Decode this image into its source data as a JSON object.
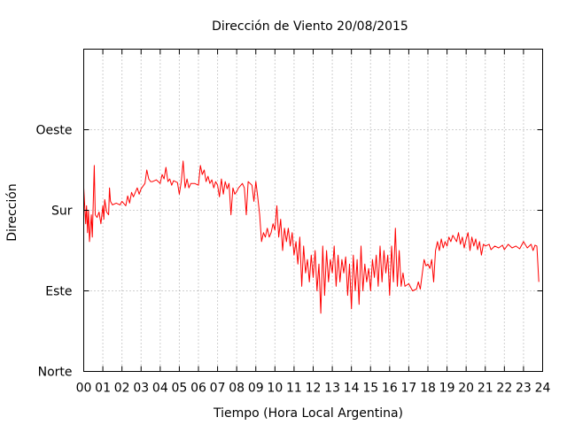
{
  "chart_data": {
    "type": "line",
    "title": "Dirección de Viento 20/08/2015",
    "xlabel": "Tiempo (Hora Local Argentina)",
    "ylabel": "Dirección",
    "xlim": [
      0,
      24
    ],
    "ylim": [
      0,
      360
    ],
    "x_ticks": [
      0,
      1,
      2,
      3,
      4,
      5,
      6,
      7,
      8,
      9,
      10,
      11,
      12,
      13,
      14,
      15,
      16,
      17,
      18,
      19,
      20,
      21,
      22,
      23,
      24
    ],
    "x_tick_labels": [
      "00",
      "01",
      "02",
      "03",
      "04",
      "05",
      "06",
      "07",
      "08",
      "09",
      "10",
      "11",
      "12",
      "13",
      "14",
      "15",
      "16",
      "17",
      "18",
      "19",
      "20",
      "21",
      "22",
      "23",
      "24"
    ],
    "y_ticks": [
      0,
      90,
      180,
      270
    ],
    "y_tick_labels": [
      "Norte",
      "Este",
      "Sur",
      "Oeste"
    ],
    "grid": true,
    "legend": "none",
    "series": [
      {
        "color": "#ff0000",
        "points": [
          [
            0.0,
            205
          ],
          [
            0.1,
            165
          ],
          [
            0.15,
            185
          ],
          [
            0.2,
            155
          ],
          [
            0.25,
            180
          ],
          [
            0.3,
            145
          ],
          [
            0.4,
            175
          ],
          [
            0.45,
            150
          ],
          [
            0.5,
            190
          ],
          [
            0.55,
            230
          ],
          [
            0.6,
            175
          ],
          [
            0.7,
            172
          ],
          [
            0.8,
            178
          ],
          [
            0.9,
            165
          ],
          [
            1.0,
            185
          ],
          [
            1.05,
            170
          ],
          [
            1.1,
            192
          ],
          [
            1.2,
            178
          ],
          [
            1.3,
            175
          ],
          [
            1.35,
            205
          ],
          [
            1.4,
            190
          ],
          [
            1.5,
            186
          ],
          [
            1.7,
            188
          ],
          [
            1.9,
            186
          ],
          [
            2.0,
            190
          ],
          [
            2.2,
            185
          ],
          [
            2.3,
            196
          ],
          [
            2.4,
            188
          ],
          [
            2.5,
            200
          ],
          [
            2.6,
            195
          ],
          [
            2.8,
            205
          ],
          [
            2.9,
            198
          ],
          [
            3.0,
            204
          ],
          [
            3.2,
            210
          ],
          [
            3.3,
            225
          ],
          [
            3.4,
            215
          ],
          [
            3.5,
            212
          ],
          [
            3.6,
            212
          ],
          [
            3.8,
            214
          ],
          [
            4.0,
            210
          ],
          [
            4.1,
            220
          ],
          [
            4.2,
            215
          ],
          [
            4.3,
            228
          ],
          [
            4.4,
            212
          ],
          [
            4.5,
            215
          ],
          [
            4.6,
            208
          ],
          [
            4.7,
            213
          ],
          [
            4.9,
            211
          ],
          [
            5.0,
            198
          ],
          [
            5.1,
            212
          ],
          [
            5.2,
            235
          ],
          [
            5.3,
            205
          ],
          [
            5.4,
            215
          ],
          [
            5.5,
            205
          ],
          [
            5.6,
            210
          ],
          [
            5.8,
            210
          ],
          [
            6.0,
            208
          ],
          [
            6.1,
            230
          ],
          [
            6.2,
            220
          ],
          [
            6.3,
            225
          ],
          [
            6.4,
            212
          ],
          [
            6.5,
            218
          ],
          [
            6.6,
            210
          ],
          [
            6.7,
            214
          ],
          [
            6.8,
            205
          ],
          [
            6.9,
            212
          ],
          [
            7.0,
            208
          ],
          [
            7.1,
            195
          ],
          [
            7.2,
            215
          ],
          [
            7.3,
            198
          ],
          [
            7.4,
            212
          ],
          [
            7.5,
            204
          ],
          [
            7.6,
            210
          ],
          [
            7.7,
            175
          ],
          [
            7.8,
            205
          ],
          [
            7.9,
            198
          ],
          [
            8.0,
            201
          ],
          [
            8.1,
            205
          ],
          [
            8.3,
            210
          ],
          [
            8.4,
            205
          ],
          [
            8.5,
            175
          ],
          [
            8.6,
            212
          ],
          [
            8.8,
            208
          ],
          [
            8.9,
            190
          ],
          [
            9.0,
            212
          ],
          [
            9.1,
            195
          ],
          [
            9.2,
            175
          ],
          [
            9.3,
            145
          ],
          [
            9.4,
            155
          ],
          [
            9.5,
            150
          ],
          [
            9.6,
            160
          ],
          [
            9.7,
            150
          ],
          [
            9.8,
            155
          ],
          [
            9.9,
            165
          ],
          [
            10.0,
            158
          ],
          [
            10.1,
            185
          ],
          [
            10.2,
            150
          ],
          [
            10.3,
            170
          ],
          [
            10.4,
            135
          ],
          [
            10.5,
            160
          ],
          [
            10.6,
            145
          ],
          [
            10.7,
            160
          ],
          [
            10.8,
            140
          ],
          [
            10.9,
            155
          ],
          [
            11.0,
            130
          ],
          [
            11.1,
            145
          ],
          [
            11.2,
            120
          ],
          [
            11.3,
            150
          ],
          [
            11.4,
            95
          ],
          [
            11.5,
            140
          ],
          [
            11.6,
            110
          ],
          [
            11.7,
            125
          ],
          [
            11.8,
            100
          ],
          [
            11.9,
            130
          ],
          [
            12.0,
            105
          ],
          [
            12.1,
            135
          ],
          [
            12.2,
            90
          ],
          [
            12.3,
            120
          ],
          [
            12.4,
            65
          ],
          [
            12.5,
            140
          ],
          [
            12.6,
            85
          ],
          [
            12.7,
            135
          ],
          [
            12.8,
            100
          ],
          [
            12.9,
            125
          ],
          [
            13.0,
            110
          ],
          [
            13.1,
            140
          ],
          [
            13.2,
            95
          ],
          [
            13.3,
            130
          ],
          [
            13.4,
            100
          ],
          [
            13.5,
            125
          ],
          [
            13.6,
            110
          ],
          [
            13.7,
            128
          ],
          [
            13.8,
            85
          ],
          [
            13.9,
            120
          ],
          [
            14.0,
            70
          ],
          [
            14.1,
            130
          ],
          [
            14.2,
            90
          ],
          [
            14.3,
            125
          ],
          [
            14.4,
            75
          ],
          [
            14.5,
            140
          ],
          [
            14.6,
            90
          ],
          [
            14.7,
            120
          ],
          [
            14.8,
            100
          ],
          [
            14.9,
            115
          ],
          [
            15.0,
            90
          ],
          [
            15.1,
            125
          ],
          [
            15.2,
            105
          ],
          [
            15.3,
            130
          ],
          [
            15.4,
            95
          ],
          [
            15.5,
            140
          ],
          [
            15.6,
            100
          ],
          [
            15.7,
            135
          ],
          [
            15.8,
            110
          ],
          [
            15.9,
            130
          ],
          [
            16.0,
            85
          ],
          [
            16.1,
            140
          ],
          [
            16.2,
            100
          ],
          [
            16.3,
            160
          ],
          [
            16.4,
            95
          ],
          [
            16.5,
            135
          ],
          [
            16.6,
            95
          ],
          [
            16.7,
            110
          ],
          [
            16.8,
            95
          ],
          [
            17.0,
            98
          ],
          [
            17.2,
            90
          ],
          [
            17.4,
            92
          ],
          [
            17.5,
            100
          ],
          [
            17.6,
            92
          ],
          [
            17.8,
            125
          ],
          [
            17.9,
            118
          ],
          [
            18.0,
            120
          ],
          [
            18.1,
            115
          ],
          [
            18.2,
            125
          ],
          [
            18.3,
            100
          ],
          [
            18.4,
            135
          ],
          [
            18.5,
            145
          ],
          [
            18.6,
            135
          ],
          [
            18.7,
            148
          ],
          [
            18.8,
            138
          ],
          [
            18.9,
            145
          ],
          [
            19.0,
            140
          ],
          [
            19.1,
            150
          ],
          [
            19.2,
            145
          ],
          [
            19.3,
            152
          ],
          [
            19.5,
            145
          ],
          [
            19.6,
            155
          ],
          [
            19.7,
            142
          ],
          [
            19.8,
            150
          ],
          [
            19.9,
            138
          ],
          [
            20.0,
            148
          ],
          [
            20.1,
            155
          ],
          [
            20.2,
            135
          ],
          [
            20.3,
            150
          ],
          [
            20.4,
            140
          ],
          [
            20.5,
            148
          ],
          [
            20.6,
            136
          ],
          [
            20.7,
            145
          ],
          [
            20.8,
            130
          ],
          [
            20.9,
            142
          ],
          [
            21.0,
            140
          ],
          [
            21.2,
            142
          ],
          [
            21.3,
            136
          ],
          [
            21.5,
            140
          ],
          [
            21.7,
            138
          ],
          [
            21.9,
            141
          ],
          [
            22.0,
            136
          ],
          [
            22.2,
            142
          ],
          [
            22.4,
            138
          ],
          [
            22.6,
            140
          ],
          [
            22.8,
            137
          ],
          [
            23.0,
            145
          ],
          [
            23.2,
            138
          ],
          [
            23.4,
            142
          ],
          [
            23.5,
            135
          ],
          [
            23.6,
            141
          ],
          [
            23.7,
            140
          ],
          [
            23.8,
            100
          ]
        ]
      }
    ]
  }
}
